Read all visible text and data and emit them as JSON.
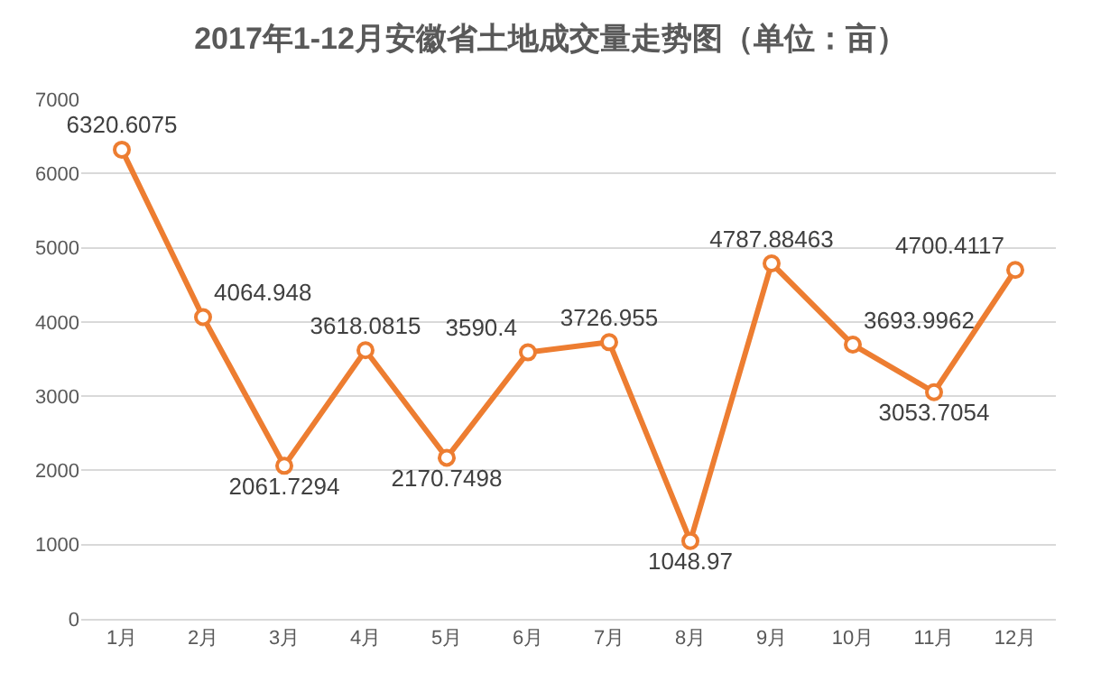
{
  "chart_data": {
    "type": "line",
    "title": "2017年1-12月安徽省土地成交量走势图（单位：亩）",
    "categories": [
      "1月",
      "2月",
      "3月",
      "4月",
      "5月",
      "6月",
      "7月",
      "8月",
      "9月",
      "10月",
      "11月",
      "12月"
    ],
    "series": [
      {
        "color": "#ed7d31",
        "values": [
          6320.6075,
          4064.948,
          2061.7294,
          3618.0815,
          2170.7498,
          3590.4,
          3726.955,
          1048.97,
          4787.88463,
          3693.9962,
          3053.7054,
          4700.4117
        ]
      }
    ],
    "ylim": [
      0,
      7000
    ],
    "yticks": [
      0,
      1000,
      2000,
      3000,
      4000,
      5000,
      6000,
      7000
    ],
    "grid": "y",
    "marker": "circle",
    "line_style": "solid",
    "data_labels": true
  }
}
